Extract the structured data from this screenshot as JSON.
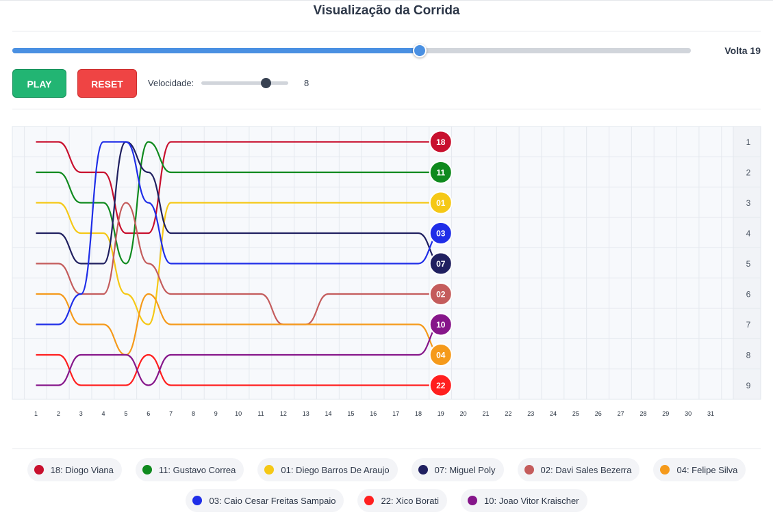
{
  "title": "Visualização da Corrida",
  "lap_label": "Volta 19",
  "progress": {
    "current_lap": 19,
    "total_laps": 31
  },
  "controls": {
    "play_label": "PLAY",
    "reset_label": "RESET",
    "speed_label": "Velocidade:",
    "speed_value": "8",
    "speed": 8,
    "speed_max": 10
  },
  "chart_data": {
    "type": "line",
    "xlabel": "",
    "ylabel": "",
    "x_ticks": [
      1,
      2,
      3,
      4,
      5,
      6,
      7,
      8,
      9,
      10,
      11,
      12,
      13,
      14,
      15,
      16,
      17,
      18,
      19,
      20,
      21,
      22,
      23,
      24,
      25,
      26,
      27,
      28,
      29,
      30,
      31
    ],
    "y_ticks": [
      1,
      2,
      3,
      4,
      5,
      6,
      7,
      8,
      9
    ],
    "xlim": [
      1,
      31
    ],
    "ylim": [
      1,
      9
    ],
    "y_inverted": true,
    "current_lap": 19,
    "series": [
      {
        "name": "18",
        "color": "#c8102e",
        "x": [
          1,
          2,
          3,
          4,
          5,
          6,
          7,
          8,
          19
        ],
        "y": [
          1,
          1,
          2,
          2,
          4,
          4,
          1,
          1,
          1
        ]
      },
      {
        "name": "11",
        "color": "#0f8a1e",
        "x": [
          1,
          2,
          3,
          4,
          5,
          6,
          7,
          8,
          19
        ],
        "y": [
          2,
          2,
          3,
          3,
          5,
          1,
          2,
          2,
          2
        ]
      },
      {
        "name": "01",
        "color": "#f5c816",
        "x": [
          1,
          2,
          3,
          4,
          5,
          6,
          7,
          8,
          19
        ],
        "y": [
          3,
          3,
          4,
          4,
          6,
          7,
          3,
          3,
          3
        ]
      },
      {
        "name": "07",
        "color": "#202060",
        "x": [
          1,
          2,
          3,
          4,
          5,
          6,
          7,
          8,
          18,
          19
        ],
        "y": [
          4,
          4,
          5,
          5,
          1,
          2,
          4,
          4,
          4,
          5
        ]
      },
      {
        "name": "02",
        "color": "#c45c5c",
        "x": [
          1,
          2,
          3,
          4,
          5,
          6,
          7,
          8,
          11,
          12,
          13,
          14,
          15,
          19
        ],
        "y": [
          5,
          5,
          6,
          6,
          3,
          5,
          6,
          6,
          6,
          7,
          7,
          6,
          6,
          6
        ]
      },
      {
        "name": "04",
        "color": "#f59a1b",
        "x": [
          1,
          2,
          3,
          4,
          5,
          6,
          7,
          8,
          18,
          19
        ],
        "y": [
          6,
          6,
          7,
          7,
          8,
          6,
          7,
          7,
          7,
          8
        ]
      },
      {
        "name": "03",
        "color": "#1f2ee8",
        "x": [
          1,
          2,
          3,
          4,
          5,
          6,
          7,
          8,
          18,
          19
        ],
        "y": [
          7,
          7,
          6,
          1,
          1,
          3,
          5,
          5,
          5,
          4
        ]
      },
      {
        "name": "22",
        "color": "#ff1f1f",
        "x": [
          1,
          2,
          3,
          4,
          5,
          6,
          7,
          8,
          19
        ],
        "y": [
          8,
          8,
          9,
          9,
          9,
          8,
          9,
          9,
          9
        ]
      },
      {
        "name": "10",
        "color": "#86168a",
        "x": [
          1,
          2,
          3,
          4,
          5,
          6,
          7,
          8,
          18,
          19
        ],
        "y": [
          9,
          9,
          8,
          8,
          8,
          9,
          8,
          8,
          8,
          7
        ]
      }
    ]
  },
  "legend": [
    {
      "label": "18: Diogo Viana",
      "color": "#c8102e"
    },
    {
      "label": "11: Gustavo Correa",
      "color": "#0f8a1e"
    },
    {
      "label": "01: Diego Barros De Araujo",
      "color": "#f5c816"
    },
    {
      "label": "07: Miguel Poly",
      "color": "#202060"
    },
    {
      "label": "02: Davi Sales Bezerra",
      "color": "#c45c5c"
    },
    {
      "label": "04: Felipe Silva",
      "color": "#f59a1b"
    },
    {
      "label": "03: Caio Cesar Freitas Sampaio",
      "color": "#1f2ee8"
    },
    {
      "label": "22: Xico Borati",
      "color": "#ff1f1f"
    },
    {
      "label": "10: Joao Vitor Kraischer",
      "color": "#86168a"
    }
  ]
}
